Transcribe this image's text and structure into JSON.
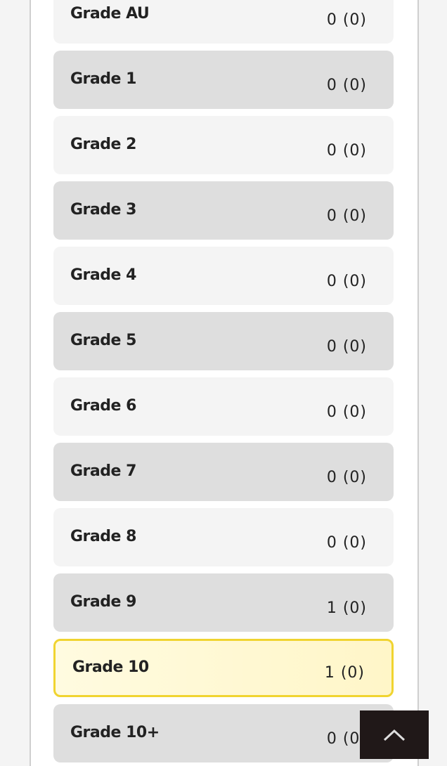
{
  "grades": [
    {
      "label": "Grade AU",
      "value": "0 (0)"
    },
    {
      "label": "Grade 1",
      "value": "0 (0)"
    },
    {
      "label": "Grade 2",
      "value": "0 (0)"
    },
    {
      "label": "Grade 3",
      "value": "0 (0)"
    },
    {
      "label": "Grade 4",
      "value": "0 (0)"
    },
    {
      "label": "Grade 5",
      "value": "0 (0)"
    },
    {
      "label": "Grade 6",
      "value": "0 (0)"
    },
    {
      "label": "Grade 7",
      "value": "0 (0)"
    },
    {
      "label": "Grade 8",
      "value": "0 (0)"
    },
    {
      "label": "Grade 9",
      "value": "1 (0)"
    },
    {
      "label": "Grade 10",
      "value": "1 (0)",
      "selected": true
    },
    {
      "label": "Grade 10+",
      "value": "0 (0)"
    }
  ],
  "colors": {
    "selected_border": "#f0d430",
    "selected_bg": "#fff6c8",
    "back_to_top_bg": "#201818"
  },
  "back_to_top_icon": "chevron-up-icon"
}
